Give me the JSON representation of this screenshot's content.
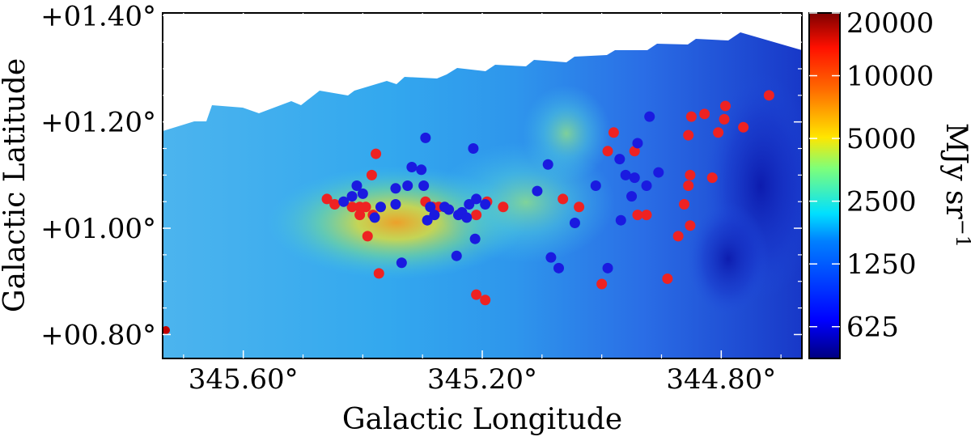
{
  "chart_data": {
    "type": "scatter",
    "title": "",
    "xlabel": "Galactic Longitude",
    "ylabel": "Galactic Latitude",
    "xlim": [
      345.735,
      344.665
    ],
    "ylim": [
      0.755,
      1.405
    ],
    "x_ticks": [
      {
        "value": 345.6,
        "label": "345.60°"
      },
      {
        "value": 345.2,
        "label": "345.20°"
      },
      {
        "value": 344.8,
        "label": "344.80°"
      }
    ],
    "y_ticks": [
      {
        "value": 1.4,
        "label": "+01.40°"
      },
      {
        "value": 1.2,
        "label": "+01.20°"
      },
      {
        "value": 1.0,
        "label": "+01.00°"
      },
      {
        "value": 0.8,
        "label": "+00.80°"
      }
    ],
    "background_image": "far-infrared intensity map, jet colormap, logarithmic stretch",
    "colorbar": {
      "label": "MJy sr",
      "label_exponent": "−1",
      "scale": "log",
      "range": [
        440,
        20000
      ],
      "ticks": [
        {
          "value": 20000,
          "label": "20000"
        },
        {
          "value": 10000,
          "label": "10000"
        },
        {
          "value": 5000,
          "label": "5000"
        },
        {
          "value": 2500,
          "label": "2500"
        },
        {
          "value": 1250,
          "label": "1250"
        },
        {
          "value": 625,
          "label": "625"
        }
      ]
    },
    "series": [
      {
        "name": "red sources",
        "color": "#ee2222",
        "points": [
          [
            345.46,
            1.055
          ],
          [
            345.447,
            1.045
          ],
          [
            345.418,
            1.04
          ],
          [
            345.405,
            1.04
          ],
          [
            345.405,
            1.025
          ],
          [
            345.395,
            1.04
          ],
          [
            345.392,
            0.985
          ],
          [
            345.385,
            1.1
          ],
          [
            345.383,
            1.025
          ],
          [
            345.378,
            1.14
          ],
          [
            345.373,
            0.915
          ],
          [
            345.295,
            1.05
          ],
          [
            345.283,
            1.04
          ],
          [
            345.273,
            1.04
          ],
          [
            345.21,
            1.025
          ],
          [
            345.192,
            1.05
          ],
          [
            345.21,
            0.875
          ],
          [
            345.195,
            0.865
          ],
          [
            345.165,
            1.04
          ],
          [
            345.065,
            1.055
          ],
          [
            345.038,
            1.04
          ],
          [
            345.0,
            0.895
          ],
          [
            344.99,
            1.145
          ],
          [
            344.98,
            1.18
          ],
          [
            344.945,
            1.145
          ],
          [
            344.94,
            1.025
          ],
          [
            344.925,
            1.025
          ],
          [
            344.89,
            0.905
          ],
          [
            344.872,
            0.985
          ],
          [
            344.862,
            1.045
          ],
          [
            344.855,
            1.175
          ],
          [
            344.855,
            1.08
          ],
          [
            344.852,
            1.1
          ],
          [
            344.852,
            1.005
          ],
          [
            344.85,
            1.21
          ],
          [
            344.828,
            1.215
          ],
          [
            344.815,
            1.095
          ],
          [
            344.805,
            1.18
          ],
          [
            344.795,
            1.205
          ],
          [
            344.793,
            1.23
          ],
          [
            344.763,
            1.19
          ],
          [
            344.72,
            1.25
          ]
        ]
      },
      {
        "name": "blue sources",
        "color": "#1a1ae0",
        "points": [
          [
            345.432,
            1.05
          ],
          [
            345.418,
            1.06
          ],
          [
            345.41,
            1.08
          ],
          [
            345.4,
            1.065
          ],
          [
            345.38,
            1.02
          ],
          [
            345.37,
            1.04
          ],
          [
            345.345,
            1.045
          ],
          [
            345.345,
            1.075
          ],
          [
            345.335,
            0.935
          ],
          [
            345.325,
            1.08
          ],
          [
            345.318,
            1.115
          ],
          [
            345.302,
            1.11
          ],
          [
            345.298,
            1.08
          ],
          [
            345.295,
            1.17
          ],
          [
            345.292,
            1.015
          ],
          [
            345.287,
            1.04
          ],
          [
            345.28,
            1.025
          ],
          [
            345.263,
            1.04
          ],
          [
            345.256,
            1.035
          ],
          [
            345.243,
            0.948
          ],
          [
            345.24,
            1.025
          ],
          [
            345.234,
            1.03
          ],
          [
            345.226,
            1.02
          ],
          [
            345.222,
            1.045
          ],
          [
            345.215,
            1.15
          ],
          [
            345.212,
            0.98
          ],
          [
            345.21,
            1.055
          ],
          [
            345.195,
            1.045
          ],
          [
            345.108,
            1.07
          ],
          [
            345.09,
            1.12
          ],
          [
            345.085,
            0.945
          ],
          [
            345.072,
            0.925
          ],
          [
            345.045,
            1.01
          ],
          [
            345.01,
            1.08
          ],
          [
            344.99,
            0.925
          ],
          [
            344.97,
            1.13
          ],
          [
            344.968,
            1.015
          ],
          [
            344.96,
            1.1
          ],
          [
            344.95,
            1.06
          ],
          [
            344.945,
            1.095
          ],
          [
            344.94,
            1.16
          ],
          [
            344.925,
            1.08
          ],
          [
            344.92,
            1.21
          ],
          [
            344.905,
            1.105
          ]
        ]
      }
    ]
  }
}
